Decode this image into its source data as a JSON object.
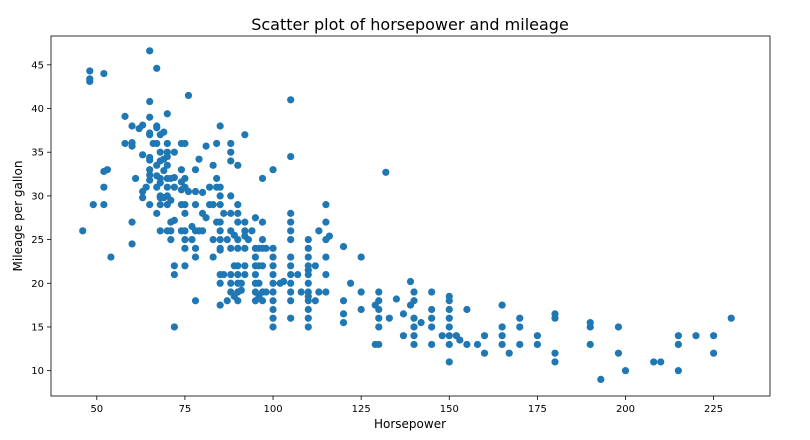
{
  "chart_data": {
    "type": "scatter",
    "title": "Scatter plot of horsepower and mileage",
    "xlabel": "Horsepower",
    "ylabel": "Mileage per gallon",
    "xlim": [
      37,
      241
    ],
    "ylim": [
      7.1,
      48.3
    ],
    "xticks": [
      50,
      75,
      100,
      125,
      150,
      175,
      200,
      225
    ],
    "yticks": [
      10,
      15,
      20,
      25,
      30,
      35,
      40,
      45
    ],
    "grid": false,
    "legend": "none",
    "marker_color": "#1f77b4",
    "points": [
      [
        46,
        26
      ],
      [
        48,
        43.1
      ],
      [
        48,
        43.4
      ],
      [
        48,
        44.3
      ],
      [
        49,
        29
      ],
      [
        52,
        29
      ],
      [
        52,
        31
      ],
      [
        52,
        32.8
      ],
      [
        52,
        44
      ],
      [
        53,
        33
      ],
      [
        54,
        23
      ],
      [
        58,
        36
      ],
      [
        58,
        39.1
      ],
      [
        60,
        24.5
      ],
      [
        60,
        27
      ],
      [
        60,
        35.7
      ],
      [
        60,
        36.1
      ],
      [
        60,
        38
      ],
      [
        61,
        32
      ],
      [
        62,
        37.7
      ],
      [
        63,
        29.8
      ],
      [
        63,
        30.5
      ],
      [
        63,
        34.7
      ],
      [
        63,
        38.1
      ],
      [
        64,
        31
      ],
      [
        65,
        29
      ],
      [
        65,
        31.8
      ],
      [
        65,
        32.4
      ],
      [
        65,
        33
      ],
      [
        65,
        34.1
      ],
      [
        65,
        34.4
      ],
      [
        65,
        37
      ],
      [
        65,
        37.2
      ],
      [
        65,
        39
      ],
      [
        65,
        40.8
      ],
      [
        65,
        46.6
      ],
      [
        66,
        36
      ],
      [
        67,
        28
      ],
      [
        67,
        31
      ],
      [
        67,
        32.3
      ],
      [
        67,
        33.5
      ],
      [
        67,
        36
      ],
      [
        67,
        37.8
      ],
      [
        67,
        38
      ],
      [
        67,
        44.6
      ],
      [
        68,
        26
      ],
      [
        68,
        29
      ],
      [
        68,
        29.8
      ],
      [
        68,
        30
      ],
      [
        68,
        31.5
      ],
      [
        68,
        32
      ],
      [
        68,
        34
      ],
      [
        68,
        35
      ],
      [
        68,
        37
      ],
      [
        69,
        29.8
      ],
      [
        69,
        32.9
      ],
      [
        69,
        34.2
      ],
      [
        69,
        37.3
      ],
      [
        70,
        26
      ],
      [
        70,
        29
      ],
      [
        70,
        30
      ],
      [
        70,
        31
      ],
      [
        70,
        32
      ],
      [
        70,
        33.5
      ],
      [
        70,
        34.5
      ],
      [
        70,
        35
      ],
      [
        70,
        36
      ],
      [
        70,
        39.4
      ],
      [
        71,
        25
      ],
      [
        71,
        26
      ],
      [
        71,
        27
      ],
      [
        71,
        29.5
      ],
      [
        71,
        32
      ],
      [
        72,
        15
      ],
      [
        72,
        21
      ],
      [
        72,
        22
      ],
      [
        72,
        27.2
      ],
      [
        72,
        31
      ],
      [
        72,
        32.1
      ],
      [
        72,
        35
      ],
      [
        74,
        26
      ],
      [
        74,
        29
      ],
      [
        74,
        30.7
      ],
      [
        74,
        31.6
      ],
      [
        74,
        33
      ],
      [
        74,
        36
      ],
      [
        75,
        22
      ],
      [
        75,
        24
      ],
      [
        75,
        25
      ],
      [
        75,
        26
      ],
      [
        75,
        28
      ],
      [
        75,
        29
      ],
      [
        75,
        31
      ],
      [
        75,
        32
      ],
      [
        75,
        36
      ],
      [
        76,
        30.5
      ],
      [
        76,
        41.5
      ],
      [
        77,
        25
      ],
      [
        77,
        26.5
      ],
      [
        78,
        18
      ],
      [
        78,
        23
      ],
      [
        78,
        24
      ],
      [
        78,
        26
      ],
      [
        78,
        29
      ],
      [
        78,
        30.5
      ],
      [
        78,
        33
      ],
      [
        79,
        26
      ],
      [
        79,
        34.2
      ],
      [
        80,
        26
      ],
      [
        80,
        28
      ],
      [
        80,
        30.4
      ],
      [
        81,
        27.5
      ],
      [
        81,
        35.7
      ],
      [
        82,
        29
      ],
      [
        82,
        31
      ],
      [
        83,
        23
      ],
      [
        83,
        25
      ],
      [
        83,
        29
      ],
      [
        83,
        33.5
      ],
      [
        84,
        27
      ],
      [
        84,
        31
      ],
      [
        84,
        32
      ],
      [
        84,
        36
      ],
      [
        85,
        17.5
      ],
      [
        85,
        20
      ],
      [
        85,
        21
      ],
      [
        85,
        23.8
      ],
      [
        85,
        24
      ],
      [
        85,
        25
      ],
      [
        85,
        26
      ],
      [
        85,
        27
      ],
      [
        85,
        29
      ],
      [
        85,
        30
      ],
      [
        85,
        31
      ],
      [
        85,
        38
      ],
      [
        86,
        21
      ],
      [
        86,
        28
      ],
      [
        87,
        18
      ],
      [
        87,
        25
      ],
      [
        88,
        19
      ],
      [
        88,
        20
      ],
      [
        88,
        21
      ],
      [
        88,
        24
      ],
      [
        88,
        26
      ],
      [
        88,
        28
      ],
      [
        88,
        30
      ],
      [
        88,
        34
      ],
      [
        88,
        35
      ],
      [
        88,
        36
      ],
      [
        89,
        18.5
      ],
      [
        89,
        22
      ],
      [
        89,
        25.5
      ],
      [
        90,
        18
      ],
      [
        90,
        19
      ],
      [
        90,
        20
      ],
      [
        90,
        21
      ],
      [
        90,
        22
      ],
      [
        90,
        24
      ],
      [
        90,
        25
      ],
      [
        90,
        27
      ],
      [
        90,
        28
      ],
      [
        90,
        29
      ],
      [
        90,
        33.5
      ],
      [
        91,
        19.2
      ],
      [
        91,
        20
      ],
      [
        92,
        21
      ],
      [
        92,
        22
      ],
      [
        92,
        24
      ],
      [
        92,
        25.4
      ],
      [
        92,
        26
      ],
      [
        92,
        27
      ],
      [
        92,
        37
      ],
      [
        93,
        25
      ],
      [
        94,
        26
      ],
      [
        95,
        18
      ],
      [
        95,
        19
      ],
      [
        95,
        20
      ],
      [
        95,
        21
      ],
      [
        95,
        22
      ],
      [
        95,
        23
      ],
      [
        95,
        24
      ],
      [
        95,
        27.5
      ],
      [
        96,
        18.5
      ],
      [
        96,
        20
      ],
      [
        96,
        22
      ],
      [
        96,
        24
      ],
      [
        97,
        18
      ],
      [
        97,
        19
      ],
      [
        97,
        22
      ],
      [
        97,
        24
      ],
      [
        97,
        25
      ],
      [
        97,
        27
      ],
      [
        97,
        32
      ],
      [
        98,
        19
      ],
      [
        98,
        24
      ],
      [
        100,
        15
      ],
      [
        100,
        16
      ],
      [
        100,
        17
      ],
      [
        100,
        18
      ],
      [
        100,
        19
      ],
      [
        100,
        20
      ],
      [
        100,
        21
      ],
      [
        100,
        22
      ],
      [
        100,
        23
      ],
      [
        100,
        24
      ],
      [
        100,
        33
      ],
      [
        102,
        20
      ],
      [
        103,
        20.2
      ],
      [
        105,
        16
      ],
      [
        105,
        18
      ],
      [
        105,
        19
      ],
      [
        105,
        20
      ],
      [
        105,
        21
      ],
      [
        105,
        22
      ],
      [
        105,
        23
      ],
      [
        105,
        25
      ],
      [
        105,
        26
      ],
      [
        105,
        27
      ],
      [
        105,
        28
      ],
      [
        105,
        34.5
      ],
      [
        105,
        41
      ],
      [
        107,
        21
      ],
      [
        108,
        19
      ],
      [
        110,
        15
      ],
      [
        110,
        16
      ],
      [
        110,
        17
      ],
      [
        110,
        18
      ],
      [
        110,
        18.5
      ],
      [
        110,
        19
      ],
      [
        110,
        20
      ],
      [
        110,
        21
      ],
      [
        110,
        21.5
      ],
      [
        110,
        22
      ],
      [
        110,
        23
      ],
      [
        110,
        24
      ],
      [
        110,
        25
      ],
      [
        112,
        18
      ],
      [
        112,
        22
      ],
      [
        113,
        19
      ],
      [
        113,
        26
      ],
      [
        115,
        19
      ],
      [
        115,
        21
      ],
      [
        115,
        23
      ],
      [
        115,
        25
      ],
      [
        115,
        27
      ],
      [
        115,
        29
      ],
      [
        116,
        25.4
      ],
      [
        120,
        15.5
      ],
      [
        120,
        16.5
      ],
      [
        120,
        18
      ],
      [
        120,
        24.2
      ],
      [
        122,
        20
      ],
      [
        125,
        17
      ],
      [
        125,
        19
      ],
      [
        125,
        23
      ],
      [
        129,
        13
      ],
      [
        129,
        17.5
      ],
      [
        130,
        13
      ],
      [
        130,
        15
      ],
      [
        130,
        16
      ],
      [
        130,
        17
      ],
      [
        130,
        18
      ],
      [
        130,
        19
      ],
      [
        132,
        32.7
      ],
      [
        133,
        16
      ],
      [
        135,
        18.2
      ],
      [
        137,
        14
      ],
      [
        137,
        16.5
      ],
      [
        139,
        17.5
      ],
      [
        139,
        20.2
      ],
      [
        140,
        13
      ],
      [
        140,
        14
      ],
      [
        140,
        15
      ],
      [
        140,
        16
      ],
      [
        140,
        18
      ],
      [
        140,
        19
      ],
      [
        142,
        15.5
      ],
      [
        145,
        13
      ],
      [
        145,
        15
      ],
      [
        145,
        16
      ],
      [
        145,
        17
      ],
      [
        145,
        19
      ],
      [
        148,
        14
      ],
      [
        150,
        11
      ],
      [
        150,
        13
      ],
      [
        150,
        14
      ],
      [
        150,
        15
      ],
      [
        150,
        16
      ],
      [
        150,
        17
      ],
      [
        150,
        18
      ],
      [
        150,
        18.5
      ],
      [
        152,
        14
      ],
      [
        153,
        13.5
      ],
      [
        155,
        17
      ],
      [
        155,
        13
      ],
      [
        158,
        13
      ],
      [
        160,
        12
      ],
      [
        160,
        14
      ],
      [
        165,
        13
      ],
      [
        165,
        14
      ],
      [
        165,
        15
      ],
      [
        165,
        17.5
      ],
      [
        167,
        12
      ],
      [
        170,
        13
      ],
      [
        170,
        15
      ],
      [
        170,
        16
      ],
      [
        175,
        13
      ],
      [
        175,
        14
      ],
      [
        180,
        11
      ],
      [
        180,
        12
      ],
      [
        180,
        16
      ],
      [
        180,
        16.5
      ],
      [
        190,
        13
      ],
      [
        190,
        15
      ],
      [
        190,
        15.5
      ],
      [
        193,
        9
      ],
      [
        198,
        12
      ],
      [
        198,
        15
      ],
      [
        200,
        10
      ],
      [
        208,
        11
      ],
      [
        210,
        11
      ],
      [
        215,
        10
      ],
      [
        215,
        13
      ],
      [
        215,
        14
      ],
      [
        220,
        14
      ],
      [
        225,
        12
      ],
      [
        225,
        14
      ],
      [
        230,
        16
      ]
    ]
  }
}
